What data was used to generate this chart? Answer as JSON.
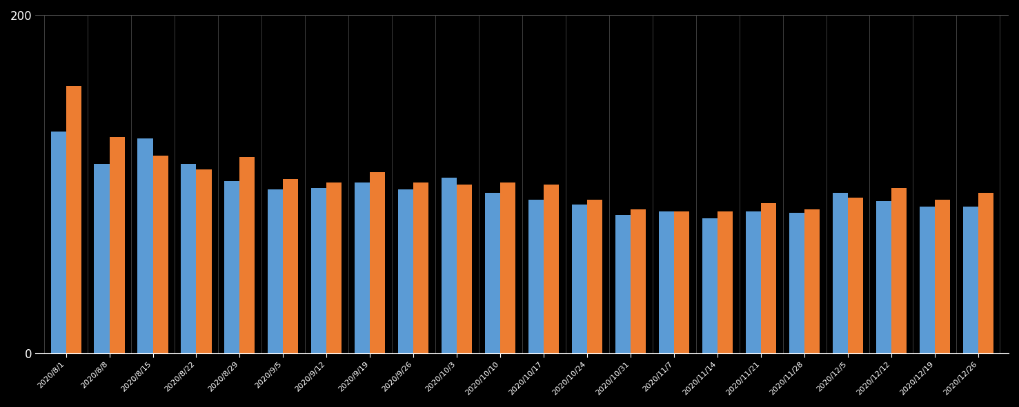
{
  "categories": [
    "2020/8/1",
    "2020/8/8",
    "2020/8/15",
    "2020/8/22",
    "2020/8/29",
    "2020/9/5",
    "2020/9/12",
    "2020/9/19",
    "2020/9/26",
    "2020/10/3",
    "2020/10/10",
    "2020/10/17",
    "2020/10/24",
    "2020/10/31",
    "2020/11/7",
    "2020/11/14",
    "2020/11/21",
    "2020/11/28",
    "2020/12/5",
    "2020/12/12",
    "2020/12/19",
    "2020/12/26"
  ],
  "series1": [
    131,
    112,
    127,
    112,
    102,
    97,
    98,
    101,
    97,
    104,
    95,
    91,
    88,
    82,
    84,
    80,
    84,
    83,
    95,
    90,
    87,
    87
  ],
  "series2": [
    158,
    128,
    117,
    109,
    116,
    103,
    101,
    107,
    101,
    100,
    101,
    100,
    91,
    85,
    84,
    84,
    89,
    85,
    92,
    98,
    91,
    95
  ],
  "bar_color1": "#5b9bd5",
  "bar_color2": "#ed7d31",
  "background_color": "#000000",
  "plot_bg_color": "#000000",
  "text_color": "#ffffff",
  "grid_color": "#555555",
  "ylim": [
    0,
    200
  ],
  "yticks": [
    0,
    200
  ],
  "bar_width": 0.35,
  "figsize": [
    14.77,
    5.91
  ],
  "dpi": 100
}
